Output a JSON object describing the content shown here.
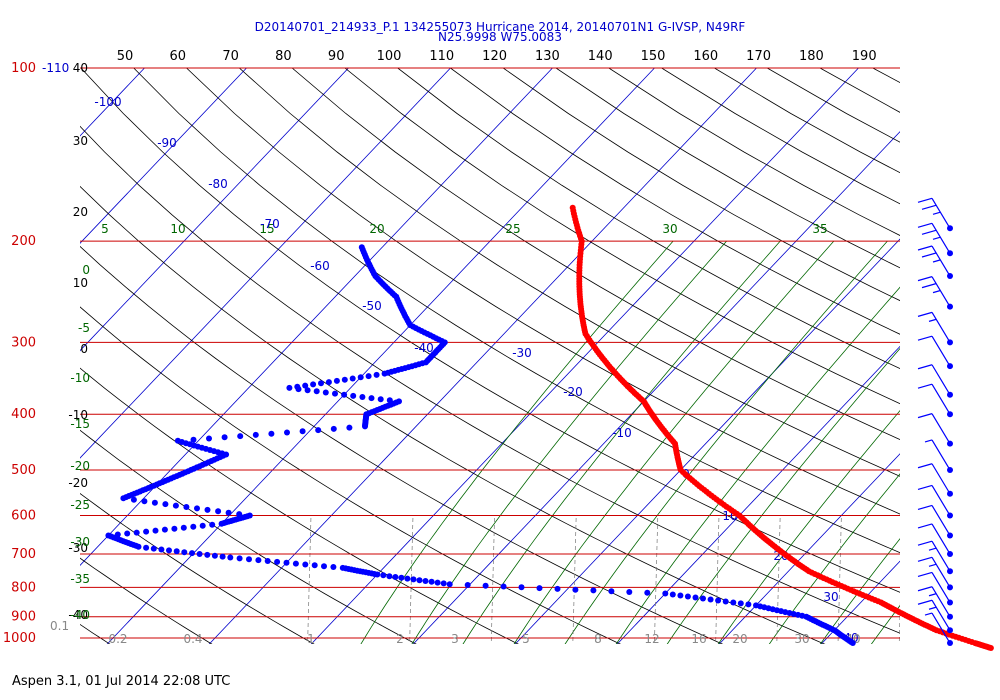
{
  "header": {
    "line1": "D20140701_214933_P.1 134255073 Hurricane 2014, 20140701N1 G-IVSP, N49RF",
    "line2": "N25.9998 W75.0083"
  },
  "footer": {
    "text": "Aspen 3.1, 01 Jul 2014  22:08 UTC"
  },
  "colors": {
    "temperature": "#ff0000",
    "dewpoint": "#0000ff",
    "isobar": "#cc0000",
    "isotherm": "#0000cc",
    "dry_adiabat": "#000000",
    "moist_adiabat": "#006600",
    "mixing_ratio": "#777777",
    "wind_barb": "#0000ff"
  },
  "chart_data": {
    "type": "skew-t log-p sounding",
    "top_scale": [
      "50",
      "60",
      "70",
      "80",
      "90",
      "100",
      "110",
      "120",
      "130",
      "140",
      "150",
      "160",
      "170",
      "180",
      "190"
    ],
    "pressure_labels": [
      "100",
      "200",
      "300",
      "400",
      "500",
      "600",
      "700",
      "800",
      "900",
      "1000"
    ],
    "left_label_100_extra": "-110",
    "left_extra_label": "0.1",
    "potential_temp_labels": [
      "40",
      "30",
      "20",
      "10",
      "0",
      "-10",
      "-20",
      "-30",
      "-40"
    ],
    "theta_e_labels": [
      "0",
      "-5",
      "-10",
      "-15",
      "-20",
      "-25",
      "-30",
      "-35",
      "-40"
    ],
    "moist_adiabat_labels": [
      "5",
      "10",
      "15",
      "20",
      "25",
      "30",
      "35"
    ],
    "isotherm_labels": [
      "-100",
      "-90",
      "-80",
      "-70",
      "-60",
      "-50",
      "-40",
      "-30",
      "-20",
      "-10",
      "0",
      "10",
      "20",
      "30",
      "40"
    ],
    "mixing_ratio_labels": [
      "0.2",
      "0.4",
      "1",
      "2",
      "3",
      "5",
      "8",
      "12",
      "16",
      "20",
      "30",
      "40"
    ],
    "temperature_profile": [
      [
        175,
        -55
      ],
      [
        200,
        -51
      ],
      [
        230,
        -48
      ],
      [
        260,
        -45
      ],
      [
        290,
        -42
      ],
      [
        320,
        -38
      ],
      [
        350,
        -34
      ],
      [
        380,
        -30
      ],
      [
        410,
        -27
      ],
      [
        450,
        -23
      ],
      [
        500,
        -20
      ],
      [
        550,
        -15
      ],
      [
        600,
        -10
      ],
      [
        650,
        -6
      ],
      [
        700,
        -2
      ],
      [
        750,
        2
      ],
      [
        800,
        7
      ],
      [
        850,
        12
      ],
      [
        900,
        16
      ],
      [
        950,
        20
      ],
      [
        1000,
        25
      ],
      [
        1020,
        27
      ]
    ],
    "dewpoint_profile": [
      [
        205,
        -72
      ],
      [
        230,
        -68
      ],
      [
        250,
        -64
      ],
      [
        280,
        -60
      ],
      [
        300,
        -55
      ],
      [
        325,
        -55
      ],
      [
        340,
        -58
      ],
      [
        360,
        -66
      ],
      [
        380,
        -54
      ],
      [
        400,
        -56
      ],
      [
        420,
        -55
      ],
      [
        445,
        -72
      ],
      [
        470,
        -66
      ],
      [
        500,
        -68
      ],
      [
        530,
        -70
      ],
      [
        560,
        -72
      ],
      [
        600,
        -58
      ],
      [
        620,
        -60
      ],
      [
        650,
        -70
      ],
      [
        680,
        -66
      ],
      [
        710,
        -56
      ],
      [
        740,
        -44
      ],
      [
        760,
        -40
      ],
      [
        790,
        -32
      ],
      [
        820,
        -10
      ],
      [
        860,
        0
      ],
      [
        900,
        6
      ],
      [
        950,
        10
      ],
      [
        1000,
        13
      ]
    ],
    "wind_barbs": [
      {
        "p": 190,
        "speed_kt": 25
      },
      {
        "p": 210,
        "speed_kt": 25
      },
      {
        "p": 230,
        "speed_kt": 25
      },
      {
        "p": 260,
        "speed_kt": 25
      },
      {
        "p": 300,
        "speed_kt": 15
      },
      {
        "p": 330,
        "speed_kt": 10
      },
      {
        "p": 370,
        "speed_kt": 10
      },
      {
        "p": 400,
        "speed_kt": 10
      },
      {
        "p": 450,
        "speed_kt": 10
      },
      {
        "p": 500,
        "speed_kt": 5
      },
      {
        "p": 550,
        "speed_kt": 10
      },
      {
        "p": 600,
        "speed_kt": 10
      },
      {
        "p": 650,
        "speed_kt": 10
      },
      {
        "p": 700,
        "speed_kt": 10
      },
      {
        "p": 750,
        "speed_kt": 15
      },
      {
        "p": 800,
        "speed_kt": 15
      },
      {
        "p": 850,
        "speed_kt": 10
      },
      {
        "p": 900,
        "speed_kt": 15
      },
      {
        "p": 950,
        "speed_kt": 15
      },
      {
        "p": 1000,
        "speed_kt": 5
      }
    ]
  }
}
